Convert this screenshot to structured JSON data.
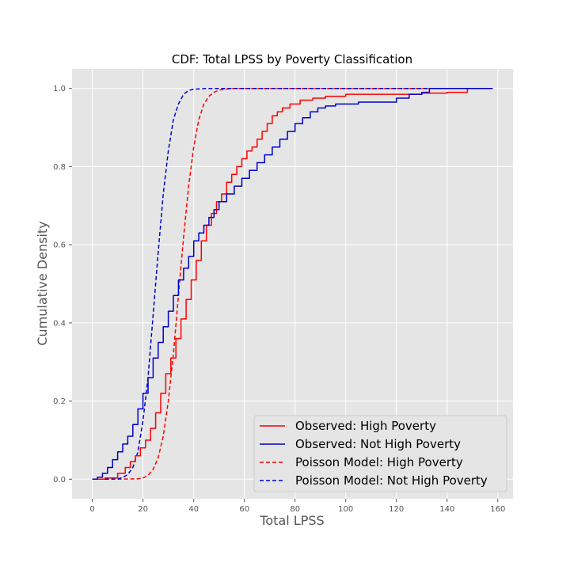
{
  "chart_data": {
    "type": "line",
    "title": "CDF: Total LPSS by Poverty Classification",
    "xlabel": "Total LPSS",
    "ylabel": "Cumulative Density",
    "xlim": [
      -8,
      166
    ],
    "ylim": [
      -0.05,
      1.05
    ],
    "x_ticks": [
      0,
      20,
      40,
      60,
      80,
      100,
      120,
      140,
      160
    ],
    "y_ticks": [
      0.0,
      0.2,
      0.4,
      0.6,
      0.8,
      1.0
    ],
    "x_tick_labels": [
      "0",
      "20",
      "40",
      "60",
      "80",
      "100",
      "120",
      "140",
      "160"
    ],
    "y_tick_labels": [
      "0.0",
      "0.2",
      "0.4",
      "0.6",
      "0.8",
      "1.0"
    ],
    "grid": true,
    "background": "#e5e5e5",
    "legend_position": "bottom-right",
    "series": [
      {
        "name": "Observed: High Poverty",
        "color": "#ff0000",
        "style": "solid",
        "step": true,
        "points": [
          [
            0,
            0
          ],
          [
            5,
            0.003
          ],
          [
            10,
            0.015
          ],
          [
            13,
            0.03
          ],
          [
            15,
            0.045
          ],
          [
            17,
            0.06
          ],
          [
            19,
            0.08
          ],
          [
            21,
            0.1
          ],
          [
            23,
            0.13
          ],
          [
            25,
            0.17
          ],
          [
            27,
            0.22
          ],
          [
            29,
            0.27
          ],
          [
            31,
            0.31
          ],
          [
            33,
            0.36
          ],
          [
            35,
            0.41
          ],
          [
            37,
            0.46
          ],
          [
            39,
            0.51
          ],
          [
            41,
            0.56
          ],
          [
            43,
            0.61
          ],
          [
            45,
            0.65
          ],
          [
            47,
            0.68
          ],
          [
            49,
            0.71
          ],
          [
            51,
            0.73
          ],
          [
            53,
            0.76
          ],
          [
            55,
            0.78
          ],
          [
            57,
            0.8
          ],
          [
            59,
            0.82
          ],
          [
            61,
            0.84
          ],
          [
            63,
            0.85
          ],
          [
            65,
            0.87
          ],
          [
            67,
            0.89
          ],
          [
            69,
            0.91
          ],
          [
            71,
            0.93
          ],
          [
            73,
            0.94
          ],
          [
            75,
            0.95
          ],
          [
            78,
            0.96
          ],
          [
            82,
            0.97
          ],
          [
            87,
            0.975
          ],
          [
            92,
            0.98
          ],
          [
            100,
            0.985
          ],
          [
            115,
            0.985
          ],
          [
            120,
            0.985
          ],
          [
            125,
            0.985
          ],
          [
            130,
            0.988
          ],
          [
            140,
            0.99
          ],
          [
            148,
            1.0
          ],
          [
            158,
            1.0
          ]
        ]
      },
      {
        "name": "Observed: Not High Poverty",
        "color": "#0000cc",
        "style": "solid",
        "step": true,
        "points": [
          [
            0,
            0
          ],
          [
            2,
            0.005
          ],
          [
            4,
            0.015
          ],
          [
            6,
            0.03
          ],
          [
            8,
            0.05
          ],
          [
            10,
            0.07
          ],
          [
            12,
            0.09
          ],
          [
            14,
            0.11
          ],
          [
            16,
            0.14
          ],
          [
            18,
            0.18
          ],
          [
            20,
            0.22
          ],
          [
            22,
            0.26
          ],
          [
            24,
            0.31
          ],
          [
            26,
            0.35
          ],
          [
            28,
            0.39
          ],
          [
            30,
            0.43
          ],
          [
            32,
            0.47
          ],
          [
            34,
            0.51
          ],
          [
            36,
            0.54
          ],
          [
            38,
            0.57
          ],
          [
            40,
            0.61
          ],
          [
            42,
            0.63
          ],
          [
            44,
            0.65
          ],
          [
            46,
            0.67
          ],
          [
            48,
            0.69
          ],
          [
            50,
            0.71
          ],
          [
            53,
            0.73
          ],
          [
            56,
            0.75
          ],
          [
            59,
            0.77
          ],
          [
            62,
            0.79
          ],
          [
            65,
            0.81
          ],
          [
            68,
            0.83
          ],
          [
            71,
            0.85
          ],
          [
            74,
            0.87
          ],
          [
            77,
            0.89
          ],
          [
            80,
            0.91
          ],
          [
            83,
            0.925
          ],
          [
            86,
            0.94
          ],
          [
            89,
            0.95
          ],
          [
            92,
            0.955
          ],
          [
            96,
            0.96
          ],
          [
            105,
            0.965
          ],
          [
            115,
            0.965
          ],
          [
            120,
            0.975
          ],
          [
            125,
            0.985
          ],
          [
            130,
            0.99
          ],
          [
            133,
            1.0
          ],
          [
            158,
            1.0
          ]
        ]
      },
      {
        "name": "Poisson Model: High Poverty",
        "color": "#ff0000",
        "style": "dashed",
        "step": false,
        "points": [
          [
            0,
            0
          ],
          [
            10,
            0
          ],
          [
            18,
            0.001
          ],
          [
            20,
            0.003
          ],
          [
            22,
            0.01
          ],
          [
            24,
            0.025
          ],
          [
            26,
            0.055
          ],
          [
            28,
            0.11
          ],
          [
            30,
            0.2
          ],
          [
            32,
            0.32
          ],
          [
            34,
            0.47
          ],
          [
            36,
            0.62
          ],
          [
            38,
            0.75
          ],
          [
            40,
            0.85
          ],
          [
            42,
            0.92
          ],
          [
            44,
            0.96
          ],
          [
            46,
            0.98
          ],
          [
            48,
            0.99
          ],
          [
            50,
            0.996
          ],
          [
            55,
            1.0
          ],
          [
            80,
            1.0
          ],
          [
            120,
            1.0
          ],
          [
            158,
            1.0
          ]
        ]
      },
      {
        "name": "Poisson Model: Not High Poverty",
        "color": "#0000cc",
        "style": "dashed",
        "step": false,
        "points": [
          [
            0,
            0
          ],
          [
            5,
            0
          ],
          [
            10,
            0.001
          ],
          [
            12,
            0.004
          ],
          [
            14,
            0.012
          ],
          [
            16,
            0.03
          ],
          [
            18,
            0.07
          ],
          [
            20,
            0.15
          ],
          [
            22,
            0.26
          ],
          [
            24,
            0.42
          ],
          [
            26,
            0.58
          ],
          [
            28,
            0.73
          ],
          [
            30,
            0.84
          ],
          [
            32,
            0.92
          ],
          [
            34,
            0.96
          ],
          [
            36,
            0.985
          ],
          [
            38,
            0.995
          ],
          [
            40,
            0.998
          ],
          [
            45,
            1.0
          ],
          [
            80,
            1.0
          ],
          [
            120,
            1.0
          ],
          [
            158,
            1.0
          ]
        ]
      }
    ]
  }
}
